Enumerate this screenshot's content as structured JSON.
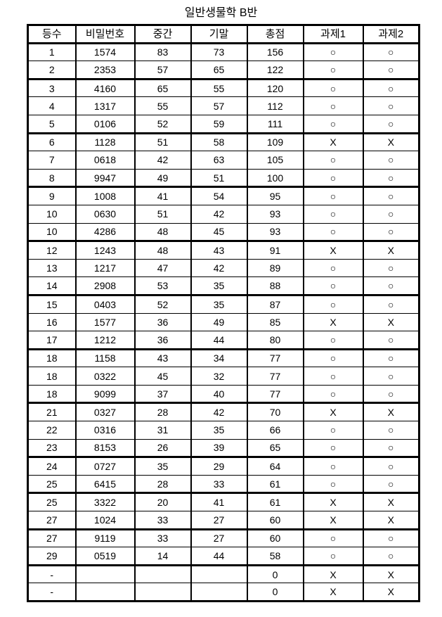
{
  "title": "일반생물학 B반",
  "colors": {
    "background": "#ffffff",
    "border": "#000000",
    "text": "#000000"
  },
  "marks": {
    "pass": "○",
    "fail": "X",
    "none": "-"
  },
  "table": {
    "columns": [
      "등수",
      "비밀번호",
      "중간",
      "기말",
      "총점",
      "과제1",
      "과제2"
    ],
    "column_keys": [
      "rank",
      "id",
      "midterm",
      "final",
      "total",
      "hw1",
      "hw2"
    ],
    "thick_after_rows": [
      2,
      5,
      8,
      11,
      14,
      17,
      20,
      23,
      25,
      27,
      29
    ],
    "rows": [
      [
        "1",
        "1574",
        "83",
        "73",
        "156",
        "○",
        "○"
      ],
      [
        "2",
        "2353",
        "57",
        "65",
        "122",
        "○",
        "○"
      ],
      [
        "3",
        "4160",
        "65",
        "55",
        "120",
        "○",
        "○"
      ],
      [
        "4",
        "1317",
        "55",
        "57",
        "112",
        "○",
        "○"
      ],
      [
        "5",
        "0106",
        "52",
        "59",
        "111",
        "○",
        "○"
      ],
      [
        "6",
        "1128",
        "51",
        "58",
        "109",
        "X",
        "X"
      ],
      [
        "7",
        "0618",
        "42",
        "63",
        "105",
        "○",
        "○"
      ],
      [
        "8",
        "9947",
        "49",
        "51",
        "100",
        "○",
        "○"
      ],
      [
        "9",
        "1008",
        "41",
        "54",
        "95",
        "○",
        "○"
      ],
      [
        "10",
        "0630",
        "51",
        "42",
        "93",
        "○",
        "○"
      ],
      [
        "10",
        "4286",
        "48",
        "45",
        "93",
        "○",
        "○"
      ],
      [
        "12",
        "1243",
        "48",
        "43",
        "91",
        "X",
        "X"
      ],
      [
        "13",
        "1217",
        "47",
        "42",
        "89",
        "○",
        "○"
      ],
      [
        "14",
        "2908",
        "53",
        "35",
        "88",
        "○",
        "○"
      ],
      [
        "15",
        "0403",
        "52",
        "35",
        "87",
        "○",
        "○"
      ],
      [
        "16",
        "1577",
        "36",
        "49",
        "85",
        "X",
        "X"
      ],
      [
        "17",
        "1212",
        "36",
        "44",
        "80",
        "○",
        "○"
      ],
      [
        "18",
        "1158",
        "43",
        "34",
        "77",
        "○",
        "○"
      ],
      [
        "18",
        "0322",
        "45",
        "32",
        "77",
        "○",
        "○"
      ],
      [
        "18",
        "9099",
        "37",
        "40",
        "77",
        "○",
        "○"
      ],
      [
        "21",
        "0327",
        "28",
        "42",
        "70",
        "X",
        "X"
      ],
      [
        "22",
        "0316",
        "31",
        "35",
        "66",
        "○",
        "○"
      ],
      [
        "23",
        "8153",
        "26",
        "39",
        "65",
        "○",
        "○"
      ],
      [
        "24",
        "0727",
        "35",
        "29",
        "64",
        "○",
        "○"
      ],
      [
        "25",
        "6415",
        "28",
        "33",
        "61",
        "○",
        "○"
      ],
      [
        "25",
        "3322",
        "20",
        "41",
        "61",
        "X",
        "X"
      ],
      [
        "27",
        "1024",
        "33",
        "27",
        "60",
        "X",
        "X"
      ],
      [
        "27",
        "9119",
        "33",
        "27",
        "60",
        "○",
        "○"
      ],
      [
        "29",
        "0519",
        "14",
        "44",
        "58",
        "○",
        "○"
      ],
      [
        "-",
        "",
        "",
        "",
        "0",
        "X",
        "X"
      ],
      [
        "-",
        "",
        "",
        "",
        "0",
        "X",
        "X"
      ]
    ]
  }
}
